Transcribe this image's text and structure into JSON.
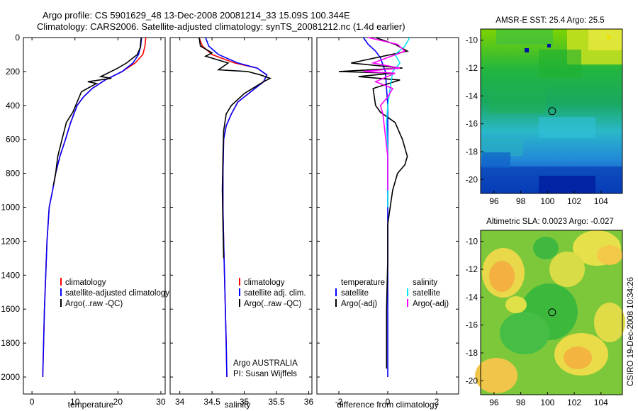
{
  "header": {
    "line1": "Argo profile: CS 5901629_48 13-Dec-2008 20081214_33 15.09S 100.344E",
    "line2": "Climatology: CARS2006. Satellite-adjusted climatology: synTS_20081212.nc (1.4d earlier)"
  },
  "footer_stamp": "CSIRO 19-Dec-2008 10:34:26",
  "colors": {
    "climatology": "#ff0000",
    "satellite": "#0000ff",
    "argo": "#000000",
    "salinity_sat": "#00e5ee",
    "salinity_argo": "#ff00ff"
  },
  "chart_data": [
    {
      "id": "temperature",
      "type": "line",
      "xlabel": "temperature",
      "ylabel": "",
      "xlim": [
        -2,
        31
      ],
      "ylim": [
        2100,
        0
      ],
      "xticks": [
        0,
        10,
        20,
        30
      ],
      "yticks": [
        0,
        200,
        400,
        600,
        800,
        1000,
        1200,
        1400,
        1600,
        1800,
        2000
      ],
      "legend": [
        {
          "label": "climatology",
          "color": "#ff0000"
        },
        {
          "label": "satellite-adjusted climatology",
          "color": "#0000ff"
        },
        {
          "label": "Argo(..raw -QC)",
          "color": "#000000"
        }
      ],
      "series": [
        {
          "name": "climatology",
          "color": "#ff0000",
          "x": [
            26.5,
            26.3,
            25.8,
            24,
            21,
            17,
            14,
            12,
            10.5,
            9,
            7.8,
            6.5,
            5.5,
            4.8,
            4,
            3.5,
            3.2,
            2.9,
            2.7,
            2.5
          ],
          "y": [
            0,
            50,
            100,
            150,
            200,
            250,
            300,
            350,
            400,
            500,
            600,
            700,
            800,
            900,
            1000,
            1200,
            1400,
            1600,
            1800,
            2000
          ]
        },
        {
          "name": "satellite-adjusted climatology",
          "color": "#0000ff",
          "x": [
            25.5,
            25.3,
            24.8,
            23.5,
            21,
            17,
            14,
            12,
            10.5,
            9,
            7.8,
            6.5,
            5.5,
            4.8,
            4,
            3.5,
            3.2,
            2.9,
            2.7,
            2.5
          ],
          "y": [
            0,
            50,
            100,
            150,
            200,
            250,
            300,
            350,
            400,
            500,
            600,
            700,
            800,
            900,
            1000,
            1200,
            1400,
            1600,
            1800,
            2000
          ]
        },
        {
          "name": "Argo",
          "color": "#000000",
          "x": [
            25.4,
            25.2,
            24.5,
            22,
            20,
            16,
            18.5,
            13,
            15,
            11.5,
            10.5,
            9.5,
            8,
            7,
            6,
            5.5,
            5
          ],
          "y": [
            0,
            60,
            100,
            150,
            180,
            230,
            240,
            260,
            270,
            320,
            380,
            440,
            500,
            600,
            700,
            800,
            870
          ]
        }
      ]
    },
    {
      "id": "salinity",
      "type": "line",
      "xlabel": "salinity",
      "xlim": [
        33.85,
        36.05
      ],
      "ylim": [
        2100,
        0
      ],
      "xticks": [
        34,
        34.5,
        35,
        35.5,
        36
      ],
      "legend": [
        {
          "label": "climatology",
          "color": "#ff0000"
        },
        {
          "label": "satellite adj. clim.",
          "color": "#0000ff"
        },
        {
          "label": "Argo(..raw -QC)",
          "color": "#000000"
        }
      ],
      "annotation": [
        "Argo AUSTRALIA",
        "PI: Susan Wijffels"
      ],
      "series": [
        {
          "name": "climatology",
          "color": "#ff0000",
          "x": [
            34.3,
            34.35,
            34.5,
            34.85,
            35.2,
            35.35,
            35.3,
            35.1,
            34.9,
            34.8,
            34.72,
            34.68,
            34.67,
            34.67,
            34.68,
            34.7,
            34.72,
            34.73
          ],
          "y": [
            0,
            50,
            100,
            150,
            180,
            220,
            260,
            320,
            380,
            450,
            520,
            600,
            800,
            1000,
            1200,
            1500,
            1800,
            2000
          ]
        },
        {
          "name": "satellite adj. clim.",
          "color": "#0000ff",
          "x": [
            34.4,
            34.45,
            34.6,
            34.9,
            35.2,
            35.35,
            35.3,
            35.1,
            34.9,
            34.8,
            34.72,
            34.68,
            34.67,
            34.67,
            34.68,
            34.7,
            34.72,
            34.73
          ],
          "y": [
            0,
            50,
            100,
            150,
            180,
            220,
            260,
            320,
            380,
            450,
            520,
            600,
            800,
            1000,
            1200,
            1500,
            1800,
            2000
          ]
        },
        {
          "name": "Argo",
          "color": "#000000",
          "x": [
            34.3,
            34.32,
            34.5,
            34.4,
            34.75,
            34.6,
            35.05,
            35.25,
            35.4,
            35.3,
            35.0,
            34.8,
            34.72,
            34.68,
            34.67,
            34.66,
            34.67,
            34.68
          ],
          "y": [
            0,
            50,
            90,
            110,
            150,
            190,
            200,
            220,
            240,
            260,
            330,
            400,
            450,
            550,
            700,
            900,
            1100,
            1300
          ]
        }
      ]
    },
    {
      "id": "difference",
      "type": "line",
      "xlabel": "difference from climatology",
      "xlim": [
        -2.9,
        2.9
      ],
      "ylim": [
        2100,
        0
      ],
      "xticks": [
        -2,
        0,
        2
      ],
      "legend_left_title": "temperature",
      "legend_right_title": "salinity",
      "legend_left": [
        {
          "label": "satellite",
          "color": "#0000ff"
        },
        {
          "label": "Argo(-adj)",
          "color": "#000000"
        }
      ],
      "legend_right": [
        {
          "label": "satellite",
          "color": "#00e5ee"
        },
        {
          "label": "Argo(-adj)",
          "color": "#ff00ff"
        }
      ],
      "series": [
        {
          "name": "temperature satellite",
          "color": "#0000ff",
          "x": [
            -1.0,
            -0.8,
            -0.5,
            -0.3,
            -0.1,
            0,
            0,
            0,
            0,
            0
          ],
          "y": [
            0,
            40,
            80,
            120,
            200,
            400,
            800,
            1200,
            1600,
            2000
          ]
        },
        {
          "name": "temperature Argo(-adj)",
          "color": "#000000",
          "x": [
            -0.5,
            0.3,
            0.8,
            -1.5,
            0.6,
            -2.0,
            0.2,
            -1.2,
            0.5,
            -0.6,
            -0.5,
            -0.3,
            0.3,
            0.6,
            0.8,
            0.7,
            0.4,
            0.2,
            0.1,
            0,
            0,
            -0.05,
            -0.05
          ],
          "y": [
            0,
            40,
            80,
            150,
            180,
            200,
            210,
            230,
            250,
            300,
            400,
            440,
            500,
            600,
            700,
            750,
            800,
            900,
            1000,
            1100,
            1300,
            1600,
            1950
          ]
        },
        {
          "name": "salinity satellite",
          "color": "#00e5ee",
          "x": [
            0.9,
            0.7,
            0.3,
            0.5,
            0.2,
            0.1,
            0,
            -0.05,
            0,
            0,
            0
          ],
          "y": [
            0,
            50,
            100,
            150,
            200,
            300,
            400,
            500,
            700,
            900,
            1000
          ]
        },
        {
          "name": "salinity Argo(-adj)",
          "color": "#ff00ff",
          "x": [
            -0.8,
            0.4,
            0.7,
            -0.6,
            0.5,
            -1.0,
            0.3,
            -0.5,
            0.2,
            0,
            -0.3,
            -0.2,
            0,
            0
          ],
          "y": [
            0,
            40,
            80,
            150,
            180,
            200,
            210,
            260,
            300,
            350,
            400,
            450,
            700,
            900
          ]
        }
      ]
    },
    {
      "id": "amsre-sst",
      "type": "heatmap",
      "title": "AMSR-E SST: 25.4 Argo: 25.5",
      "xlim": [
        95,
        105.6
      ],
      "ylim": [
        -21,
        -9.2
      ],
      "xticks": [
        96,
        98,
        100,
        102,
        104
      ],
      "yticks": [
        -10,
        -12,
        -14,
        -16,
        -18,
        -20
      ],
      "marker": {
        "x": 100.344,
        "y": -15.09
      }
    },
    {
      "id": "altimetric-sla",
      "type": "heatmap",
      "title": "Altimetric SLA: 0.0023 Argo: -0.027",
      "xlim": [
        95,
        105.6
      ],
      "ylim": [
        -21,
        -9.2
      ],
      "xticks": [
        96,
        98,
        100,
        102,
        104
      ],
      "yticks": [
        -10,
        -12,
        -14,
        -16,
        -18,
        -20
      ],
      "marker": {
        "x": 100.344,
        "y": -15.09
      }
    }
  ]
}
